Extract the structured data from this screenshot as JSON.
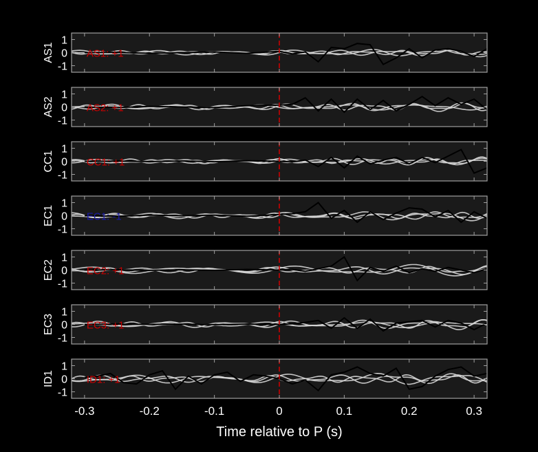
{
  "chart_data": {
    "type": "line",
    "xlabel": "Time relative to P (s)",
    "xlim": [
      -0.32,
      0.32
    ],
    "xticks": [
      -0.3,
      -0.2,
      -0.1,
      0,
      0.1,
      0.2,
      0.3
    ],
    "xtick_labels": [
      "-0.3",
      "-0.2",
      "-0.1",
      "0",
      "0.1",
      "0.2",
      "0.3"
    ],
    "ylim": [
      -1.5,
      1.5
    ],
    "yticks": [
      1,
      0,
      -1
    ],
    "ytick_labels": [
      "1",
      "0",
      "-1"
    ],
    "pick_time": 0,
    "colors": {
      "background": "#000000",
      "axes_bg": "#1a1a1a",
      "axes_edge": "#a0a0a0",
      "text": "#ffffff",
      "trace_gray": "#d8d8d8",
      "trace_black": "#000000",
      "pick_line": "#cc0000",
      "polarity_red": "#cc0000",
      "polarity_blue": "#1a1aaa"
    },
    "panels": [
      {
        "ylabel": "AS1",
        "annotation": "AS1: +1",
        "annotation_color": "#cc0000",
        "black_trace": {
          "x": [
            -0.3,
            -0.25,
            -0.2,
            -0.15,
            -0.1,
            -0.05,
            0,
            0.02,
            0.04,
            0.06,
            0.08,
            0.1,
            0.12,
            0.14,
            0.16,
            0.18,
            0.2,
            0.22,
            0.24,
            0.26,
            0.28,
            0.3,
            0.32
          ],
          "y": [
            0,
            0.02,
            -0.05,
            0,
            0.05,
            -0.05,
            0.1,
            -0.1,
            0.05,
            -0.7,
            0.4,
            0.3,
            0.7,
            0.6,
            -0.9,
            -0.4,
            0.3,
            -0.4,
            0.2,
            0.3,
            0.1,
            -0.3,
            0.3
          ]
        },
        "gray_traces": [
          {
            "amp": 0.12,
            "freq": 9,
            "phase": 0.0,
            "growth": 2.2
          },
          {
            "amp": 0.1,
            "freq": 12,
            "phase": 1.2,
            "growth": 2.4
          },
          {
            "amp": 0.08,
            "freq": 15,
            "phase": 2.3,
            "growth": 2.0
          }
        ]
      },
      {
        "ylabel": "AS2",
        "annotation": "AS2: +1",
        "annotation_color": "#cc0000",
        "black_trace": {
          "x": [
            -0.3,
            -0.25,
            -0.2,
            -0.15,
            -0.1,
            -0.05,
            0,
            0.02,
            0.04,
            0.06,
            0.08,
            0.1,
            0.12,
            0.14,
            0.16,
            0.18,
            0.2,
            0.22,
            0.24,
            0.26,
            0.28,
            0.3,
            0.32
          ],
          "y": [
            0,
            -0.05,
            0.05,
            0,
            -0.05,
            0.1,
            0.15,
            0.2,
            0.7,
            -0.3,
            0.6,
            -0.4,
            0.6,
            -0.2,
            0.5,
            -0.3,
            0.2,
            0.8,
            0.1,
            0.7,
            0.2,
            0.6,
            -0.2
          ]
        },
        "gray_traces": [
          {
            "amp": 0.14,
            "freq": 11,
            "phase": 0.5,
            "growth": 2.3
          },
          {
            "amp": 0.12,
            "freq": 14,
            "phase": 1.9,
            "growth": 2.1
          },
          {
            "amp": 0.1,
            "freq": 8,
            "phase": 3.1,
            "growth": 2.5
          }
        ]
      },
      {
        "ylabel": "CC1",
        "annotation": "CC1: +1",
        "annotation_color": "#cc0000",
        "black_trace": {
          "x": [
            -0.3,
            -0.25,
            -0.2,
            -0.15,
            -0.1,
            -0.05,
            0,
            0.02,
            0.04,
            0.06,
            0.08,
            0.1,
            0.12,
            0.14,
            0.16,
            0.18,
            0.2,
            0.22,
            0.24,
            0.26,
            0.28,
            0.3,
            0.32
          ],
          "y": [
            0,
            0.02,
            -0.02,
            0.03,
            -0.03,
            0.05,
            0,
            -0.05,
            0.1,
            -0.4,
            0.3,
            -0.5,
            0.4,
            -0.2,
            0.1,
            0.3,
            -0.2,
            0.3,
            -0.1,
            0.4,
            0.9,
            -0.9,
            -0.5
          ]
        },
        "gray_traces": [
          {
            "amp": 0.1,
            "freq": 10,
            "phase": 0.3,
            "growth": 2.4
          },
          {
            "amp": 0.12,
            "freq": 13,
            "phase": 1.5,
            "growth": 2.6
          },
          {
            "amp": 0.08,
            "freq": 16,
            "phase": 2.7,
            "growth": 2.2
          }
        ]
      },
      {
        "ylabel": "EC1",
        "annotation": "EC1: -1",
        "annotation_color": "#1a1aaa",
        "black_trace": {
          "x": [
            -0.3,
            -0.25,
            -0.2,
            -0.15,
            -0.1,
            -0.05,
            0,
            0.02,
            0.04,
            0.06,
            0.08,
            0.1,
            0.12,
            0.14,
            0.16,
            0.18,
            0.2,
            0.22,
            0.24,
            0.26,
            0.28,
            0.3,
            0.32
          ],
          "y": [
            0,
            -0.05,
            0.05,
            0,
            0.05,
            -0.05,
            0.1,
            0.15,
            0.3,
            1.0,
            -0.2,
            0.4,
            -0.5,
            0.3,
            -0.3,
            0.2,
            0.6,
            0.5,
            -0.1,
            0.4,
            -0.5,
            0.3,
            -0.2
          ]
        },
        "gray_traces": [
          {
            "amp": 0.15,
            "freq": 9,
            "phase": 0.8,
            "growth": 2.3
          },
          {
            "amp": 0.12,
            "freq": 12,
            "phase": 2.0,
            "growth": 2.5
          },
          {
            "amp": 0.1,
            "freq": 15,
            "phase": 0.2,
            "growth": 2.1
          }
        ]
      },
      {
        "ylabel": "EC2",
        "annotation": "EC2: +1",
        "annotation_color": "#cc0000",
        "black_trace": {
          "x": [
            -0.3,
            -0.25,
            -0.2,
            -0.15,
            -0.1,
            -0.05,
            0,
            0.02,
            0.04,
            0.06,
            0.08,
            0.1,
            0.12,
            0.14,
            0.16,
            0.18,
            0.2,
            0.22,
            0.24,
            0.26,
            0.28,
            0.3,
            0.32
          ],
          "y": [
            0,
            0.02,
            -0.02,
            0.02,
            -0.02,
            0.05,
            0,
            0.05,
            -0.1,
            0.1,
            0.3,
            1.0,
            -0.8,
            0.2,
            -0.1,
            0.3,
            -0.2,
            0.1,
            -0.1,
            0.2,
            0,
            -0.2,
            0.1
          ]
        },
        "gray_traces": [
          {
            "amp": 0.18,
            "freq": 6,
            "phase": 0.4,
            "growth": 2.6
          },
          {
            "amp": 0.14,
            "freq": 9,
            "phase": 1.7,
            "growth": 2.3
          },
          {
            "amp": 0.12,
            "freq": 12,
            "phase": 2.9,
            "growth": 2.0
          }
        ]
      },
      {
        "ylabel": "EC3",
        "annotation": "EC3: +1",
        "annotation_color": "#cc0000",
        "black_trace": {
          "x": [
            -0.3,
            -0.25,
            -0.2,
            -0.15,
            -0.1,
            -0.05,
            0,
            0.02,
            0.04,
            0.06,
            0.08,
            0.1,
            0.12,
            0.14,
            0.16,
            0.18,
            0.2,
            0.22,
            0.24,
            0.26,
            0.28,
            0.3,
            0.32
          ],
          "y": [
            0,
            0.02,
            0,
            0.02,
            -0.02,
            0.02,
            0,
            0.05,
            0.15,
            0.3,
            -0.3,
            0.5,
            -0.3,
            0.4,
            -0.5,
            0.1,
            0.2,
            0.3,
            -0.2,
            0.3,
            0.1,
            -0.4,
            0.1
          ]
        },
        "gray_traces": [
          {
            "amp": 0.16,
            "freq": 10,
            "phase": 0.1,
            "growth": 2.2
          },
          {
            "amp": 0.13,
            "freq": 13,
            "phase": 1.3,
            "growth": 2.4
          },
          {
            "amp": 0.11,
            "freq": 7,
            "phase": 2.4,
            "growth": 2.1
          }
        ]
      },
      {
        "ylabel": "ID1",
        "annotation": "ID1: +1",
        "annotation_color": "#cc0000",
        "black_trace": {
          "x": [
            -0.3,
            -0.28,
            -0.26,
            -0.24,
            -0.22,
            -0.2,
            -0.18,
            -0.16,
            -0.14,
            -0.12,
            -0.1,
            -0.08,
            -0.06,
            -0.04,
            -0.02,
            0,
            0.02,
            0.04,
            0.06,
            0.08,
            0.1,
            0.12,
            0.14,
            0.16,
            0.18,
            0.2,
            0.22,
            0.24,
            0.26,
            0.28,
            0.3,
            0.32
          ],
          "y": [
            0.1,
            0.2,
            0.4,
            -0.3,
            -0.4,
            0.3,
            0.6,
            -0.8,
            0.2,
            -0.4,
            0.3,
            0.5,
            -0.2,
            0.3,
            0.2,
            0,
            -0.4,
            -0.1,
            -0.9,
            0.3,
            0.5,
            0.9,
            0.4,
            0.2,
            0.8,
            -0.8,
            -0.6,
            0.2,
            0.7,
            0.9,
            0.2,
            0.4
          ]
        },
        "gray_traces": [
          {
            "amp": 0.22,
            "freq": 8,
            "phase": 0.6,
            "growth": 1.6
          },
          {
            "amp": 0.18,
            "freq": 11,
            "phase": 1.8,
            "growth": 1.7
          },
          {
            "amp": 0.15,
            "freq": 14,
            "phase": 3.0,
            "growth": 1.5
          }
        ]
      }
    ]
  }
}
